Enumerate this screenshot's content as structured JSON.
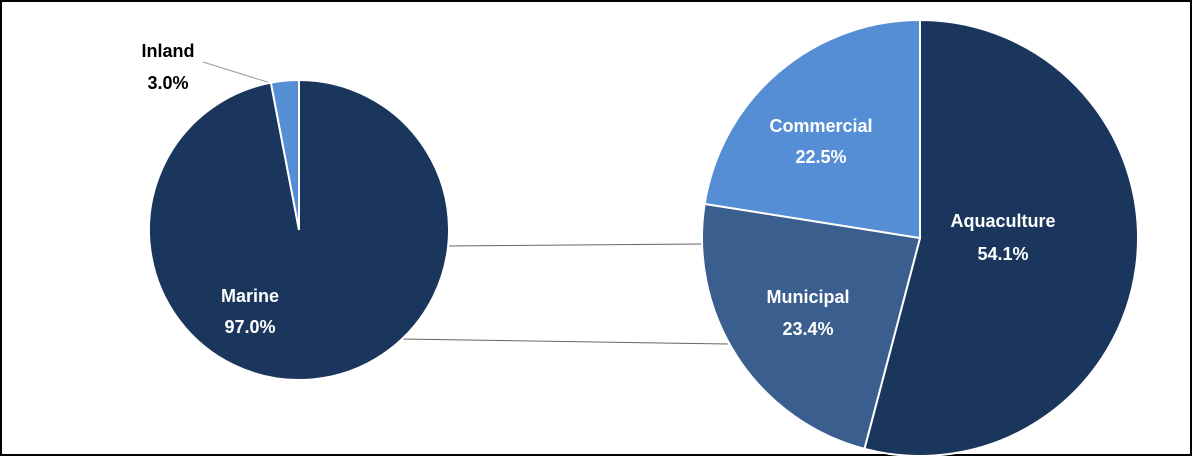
{
  "chart_data": [
    {
      "type": "pie",
      "categories": [
        "Marine",
        "Inland"
      ],
      "values": [
        97.0,
        3.0
      ],
      "value_labels": [
        "97.0%",
        "3.0%"
      ],
      "colors": [
        "#1b365d",
        "#558ed5"
      ]
    },
    {
      "type": "pie",
      "categories": [
        "Aquaculture",
        "Municipal",
        "Commercial"
      ],
      "values": [
        54.1,
        23.4,
        22.5
      ],
      "value_labels": [
        "54.1%",
        "23.4%",
        "22.5%"
      ],
      "colors": [
        "#1b365d",
        "#3a5f8f",
        "#558ed5"
      ]
    }
  ]
}
